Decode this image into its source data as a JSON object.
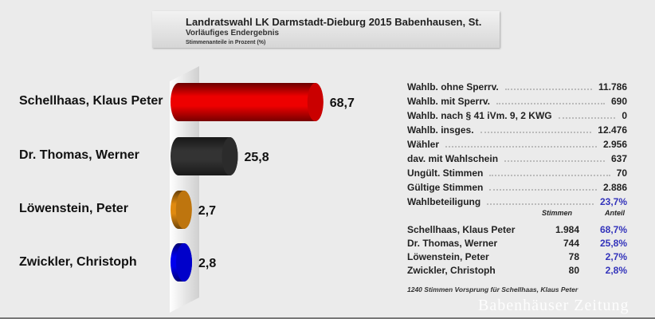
{
  "header": {
    "title": "Landratswahl LK Darmstadt-Dieburg 2015 Babenhausen, St.",
    "subtitle": "Vorläufiges Endergebnis",
    "note": "Stimmenanteile in Prozent (%)"
  },
  "chart_data": {
    "type": "bar",
    "orientation": "horizontal",
    "style": "3d-cylinder",
    "title": "Landratswahl LK Darmstadt-Dieburg 2015 Babenhausen, St.",
    "categories": [
      "Schellhaas, Klaus Peter",
      "Dr. Thomas, Werner",
      "Löwenstein, Peter",
      "Zwickler, Christoph"
    ],
    "values": [
      68.7,
      25.8,
      2.7,
      2.8
    ],
    "value_labels": [
      "68,7",
      "25,8",
      "2,7",
      "2,8"
    ],
    "colors": [
      "#ee0000",
      "#333333",
      "#e08a10",
      "#0000ee"
    ],
    "xlim": [
      0,
      100
    ],
    "grid": false
  },
  "stats": [
    {
      "label": "Wahlb. ohne Sperrv.",
      "value": "11.786"
    },
    {
      "label": "Wahlb. mit Sperrv.",
      "value": "690"
    },
    {
      "label": "Wahlb. nach § 41 iVm. 9, 2 KWG",
      "value": "0"
    },
    {
      "label": "Wahlb. insges.",
      "value": "12.476"
    },
    {
      "label": "Wähler",
      "value": "2.956"
    },
    {
      "label": "dav. mit Wahlschein",
      "value": "637"
    },
    {
      "label": "Ungült. Stimmen",
      "value": "70"
    },
    {
      "label": "Gültige Stimmen",
      "value": "2.886"
    },
    {
      "label": "Wahlbeteiligung",
      "value": "23,7%",
      "highlight": true
    }
  ],
  "results": {
    "col_votes": "Stimmen",
    "col_share": "Anteil",
    "rows": [
      {
        "name": "Schellhaas, Klaus Peter",
        "votes": "1.984",
        "share": "68,7%"
      },
      {
        "name": "Dr. Thomas, Werner",
        "votes": "744",
        "share": "25,8%"
      },
      {
        "name": "Löwenstein, Peter",
        "votes": "78",
        "share": "2,7%"
      },
      {
        "name": "Zwickler, Christoph",
        "votes": "80",
        "share": "2,8%"
      }
    ]
  },
  "footer": "1240 Stimmen Vorsprung für Schellhaas, Klaus Peter",
  "watermark": "Babenhäuser Zeitung",
  "colors": {
    "accent": "#3333bb"
  }
}
